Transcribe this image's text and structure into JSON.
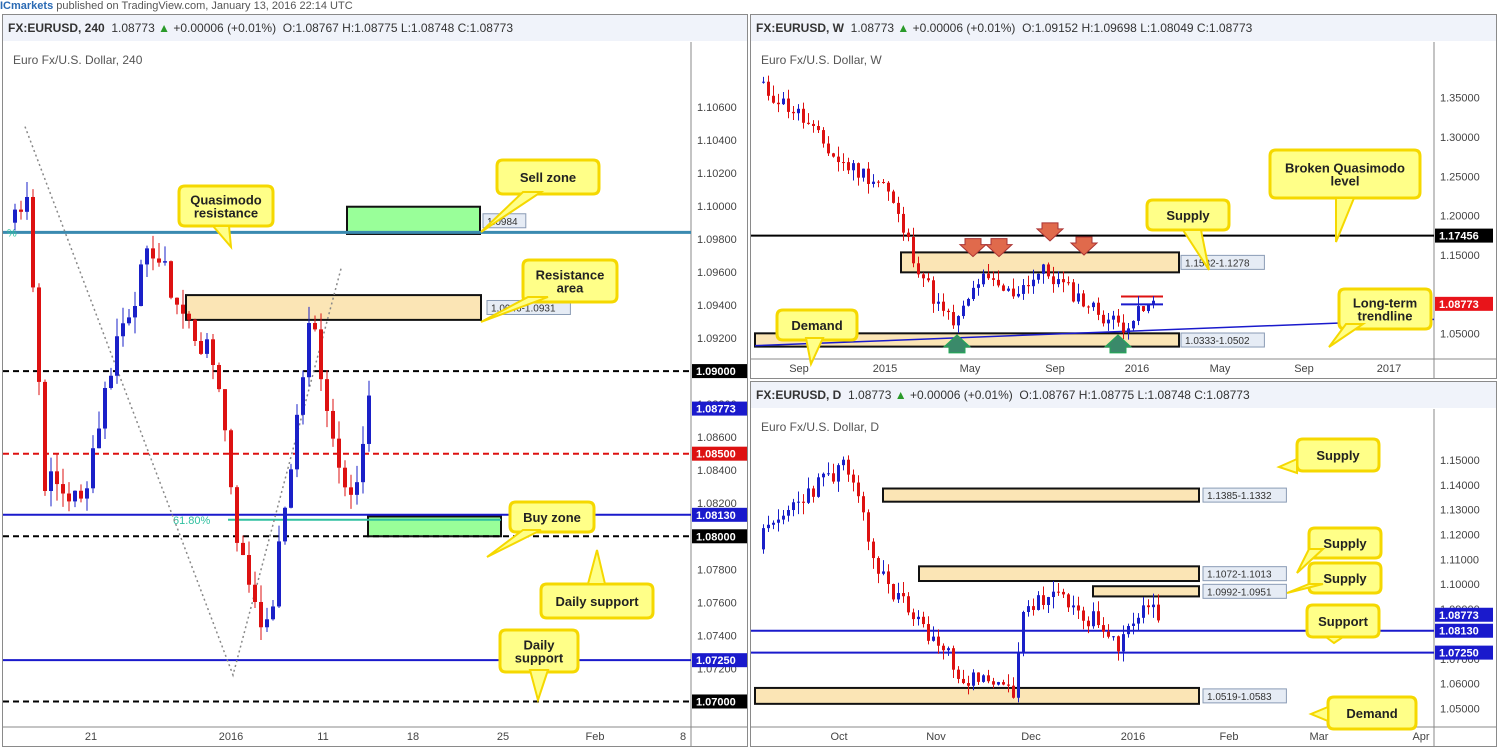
{
  "header": {
    "brand": "ICmarkets",
    "published": "published on TradingView.com, January 13, 2016 22:14 UTC"
  },
  "colors": {
    "bull": "#1a20c8",
    "bear": "#dd1111",
    "zone": "#fbe5b5",
    "green_zone": "#99ff99",
    "callout_fill": "#ffff88",
    "callout_border": "#f5d800",
    "price_tag": "#e8141a",
    "level_blue": "#1a1acc"
  },
  "panels": {
    "left": {
      "symbol": "FX:EURUSD, 240",
      "last": "1.08773",
      "change": "+0.00006 (+0.01%)",
      "o": "O:1.08767",
      "h": "H:1.08775",
      "l": "L:1.08748",
      "c": "C:1.08773",
      "name": "Euro Fx/U.S. Dollar, 240"
    },
    "weekly": {
      "symbol": "FX:EURUSD, W",
      "last": "1.08773",
      "change": "+0.00006 (+0.01%)",
      "o": "O:1.09152",
      "h": "H:1.09698",
      "l": "L:1.08049",
      "c": "C:1.08773",
      "name": "Euro Fx/U.S. Dollar, W"
    },
    "daily": {
      "symbol": "FX:EURUSD, D",
      "last": "1.08773",
      "change": "+0.00006 (+0.01%)",
      "o": "O:1.08767",
      "h": "H:1.08775",
      "l": "L:1.08748",
      "c": "C:1.08773",
      "name": "Euro Fx/U.S. Dollar, D"
    }
  },
  "chart_data": [
    {
      "id": "h4",
      "type": "candlestick",
      "timeframe": "240",
      "ylim": [
        1.069,
        1.1075
      ],
      "y_ticks": [
        "1.10600",
        "1.10400",
        "1.10200",
        "1.10000",
        "1.09800",
        "1.09600",
        "1.09400",
        "1.09200",
        "1.08800",
        "1.08600",
        "1.08400",
        "1.08200",
        "1.07800",
        "1.07600",
        "1.07400",
        "1.07200"
      ],
      "x_ticks": [
        "21",
        "2016",
        "11",
        "18",
        "25",
        "Feb",
        "8"
      ],
      "price_tags": [
        {
          "value": 1.09,
          "label": "1.09000",
          "color": "#000000"
        },
        {
          "value": 1.08773,
          "label": "1.08773",
          "color": "#1a1acc"
        },
        {
          "value": 1.085,
          "label": "1.08500",
          "color": "#dd1111"
        },
        {
          "value": 1.0813,
          "label": "1.08130",
          "color": "#1a1acc"
        },
        {
          "value": 1.08,
          "label": "1.08000",
          "color": "#000000"
        },
        {
          "value": 1.0725,
          "label": "1.07250",
          "color": "#1a1acc"
        },
        {
          "value": 1.07,
          "label": "1.07000",
          "color": "#000000"
        }
      ],
      "zones": [
        {
          "label": "1.0946-1.0931",
          "type": "resistance"
        },
        {
          "label": "1.0984",
          "type": "sell"
        }
      ],
      "fib_label": "61.80%",
      "fib_left": "%",
      "callouts": [
        "Quasimodo resistance",
        "Sell zone",
        "Resistance area",
        "Buy zone",
        "Daily support",
        "Daily support"
      ]
    },
    {
      "id": "weekly",
      "type": "candlestick",
      "timeframe": "W",
      "ylim": [
        1.029,
        1.37
      ],
      "y_ticks": [
        "1.35000",
        "1.30000",
        "1.25000",
        "1.20000",
        "1.15000",
        "1.05000"
      ],
      "x_ticks": [
        "Sep",
        "2015",
        "May",
        "Sep",
        "2016",
        "May",
        "Sep",
        "2017"
      ],
      "price_tags": [
        {
          "value": 1.17456,
          "label": "1.17456",
          "color": "#000000"
        },
        {
          "value": 1.08773,
          "label": "1.08773",
          "color": "#e8141a"
        }
      ],
      "zones": [
        {
          "label": "1.1532-1.1278",
          "type": "supply"
        },
        {
          "label": "1.0333-1.0502",
          "type": "demand"
        }
      ],
      "callouts": [
        "Supply",
        "Broken Quasimodo level",
        "Long-term trendline",
        "Demand"
      ]
    },
    {
      "id": "daily",
      "type": "candlestick",
      "timeframe": "D",
      "ylim": [
        1.045,
        1.156
      ],
      "y_ticks": [
        "1.15000",
        "1.14000",
        "1.13000",
        "1.12000",
        "1.11000",
        "1.10000",
        "1.09000",
        "1.07000",
        "1.06000",
        "1.05000"
      ],
      "x_ticks": [
        "Oct",
        "Nov",
        "Dec",
        "2016",
        "Feb",
        "Mar",
        "Apr"
      ],
      "price_tags": [
        {
          "value": 1.08773,
          "label": "1.08773",
          "color": "#1a1acc"
        },
        {
          "value": 1.0813,
          "label": "1.08130",
          "color": "#1a1acc"
        },
        {
          "value": 1.0725,
          "label": "1.07250",
          "color": "#1a1acc"
        }
      ],
      "zones": [
        {
          "label": "1.1385-1.1332",
          "type": "supply"
        },
        {
          "label": "1.1072-1.1013",
          "type": "supply"
        },
        {
          "label": "1.0992-1.0951",
          "type": "supply"
        },
        {
          "label": "1.0519-1.0583",
          "type": "demand"
        }
      ],
      "callouts": [
        "Supply",
        "Supply",
        "Supply",
        "Support",
        "Demand"
      ]
    }
  ]
}
